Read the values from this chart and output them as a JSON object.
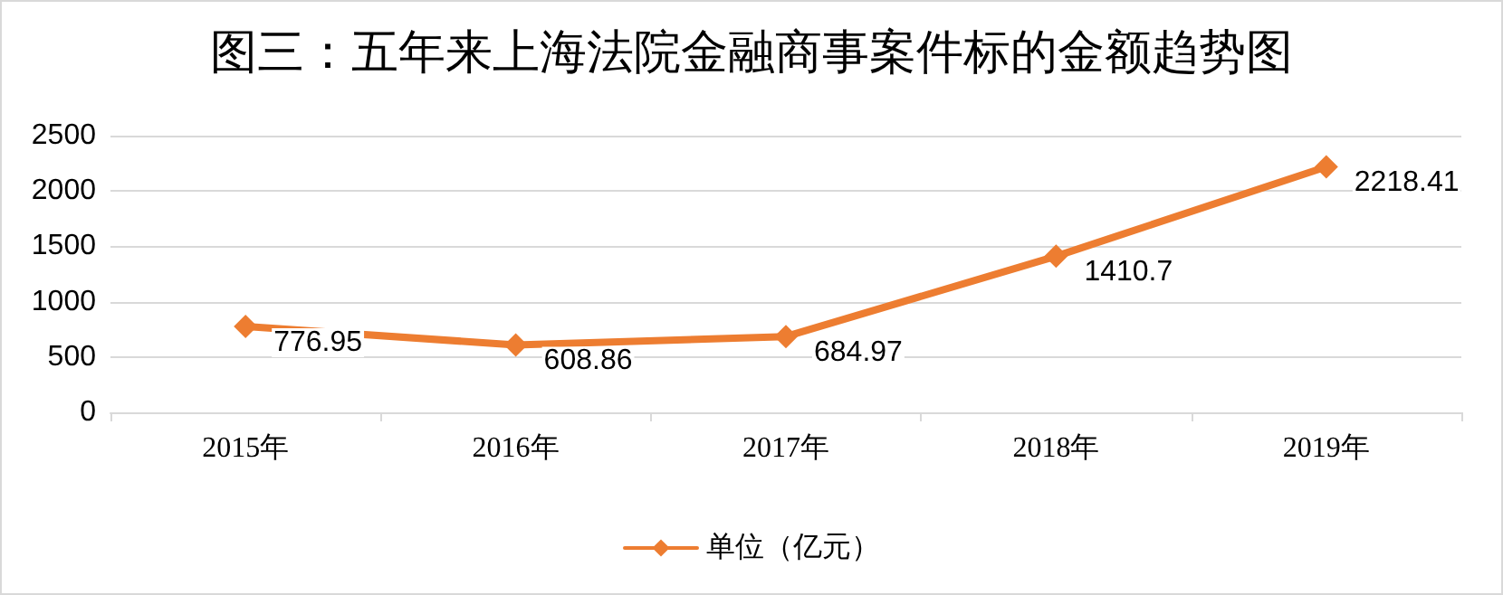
{
  "chart_data": {
    "type": "line",
    "title": "图三：五年来上海法院金融商事案件标的金额趋势图",
    "categories": [
      "2015年",
      "2016年",
      "2017年",
      "2018年",
      "2019年"
    ],
    "series": [
      {
        "name": "单位（亿元）",
        "color": "#ed7d31",
        "values": [
          776.95,
          608.86,
          684.97,
          1410.7,
          2218.41
        ]
      }
    ],
    "ylim": [
      0,
      2500
    ],
    "yticks": [
      0,
      500,
      1000,
      1500,
      2000,
      2500
    ],
    "grid": "y",
    "legend": "bottom",
    "marker": "diamond",
    "line_style": "solid",
    "data_labels": true
  }
}
